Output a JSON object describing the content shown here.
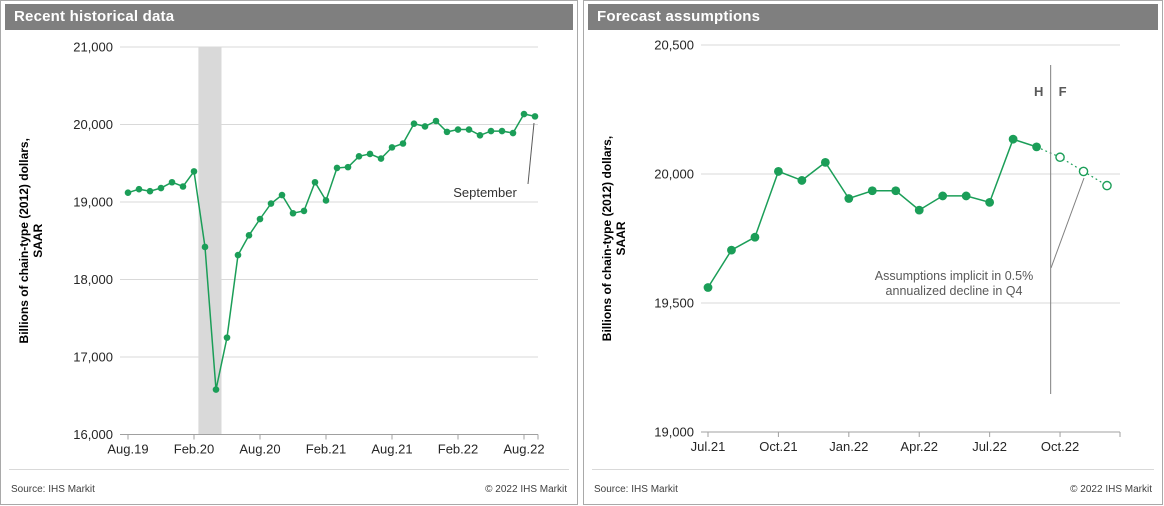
{
  "panels": [
    {
      "title": "Recent historical data",
      "source": "Source: IHS Markit",
      "copyright": "© 2022  IHS Markit"
    },
    {
      "title": "Forecast assumptions",
      "source": "Source: IHS Markit",
      "copyright": "© 2022  IHS Markit"
    }
  ],
  "colors": {
    "accent_green": "#1b9e58",
    "header_bg": "#7f7f7f",
    "grid": "#d9d9d9",
    "axis": "#a0a0a0",
    "recession_band": "#d9d9d9",
    "tick_text": "#262626",
    "annotation_gray": "#595959",
    "annotation_dark": "#3c3c3c"
  },
  "chart_data": [
    {
      "type": "line",
      "title": "Recent historical data",
      "ylabel": [
        "Billions of chain-type (2012)  dollars,",
        "SAAR"
      ],
      "ylim": [
        16000,
        21000
      ],
      "yticks": [
        16000,
        17000,
        18000,
        19000,
        20000,
        21000
      ],
      "grid": true,
      "x": [
        "Aug.19",
        "Sep.19",
        "Oct.19",
        "Nov.19",
        "Dec.19",
        "Jan.20",
        "Feb.20",
        "Mar.20",
        "Apr.20",
        "May.20",
        "Jun.20",
        "Jul.20",
        "Aug.20",
        "Sep.20",
        "Oct.20",
        "Nov.20",
        "Dec.20",
        "Jan.21",
        "Feb.21",
        "Mar.21",
        "Apr.21",
        "May.21",
        "Jun.21",
        "Jul.21",
        "Aug.21",
        "Sep.21",
        "Oct.21",
        "Nov.21",
        "Dec.21",
        "Jan.22",
        "Feb.22",
        "Mar.22",
        "Apr.22",
        "May.22",
        "Jun.22",
        "Jul.22",
        "Aug.22",
        "Sep.22"
      ],
      "xtick_labels": [
        "Aug.19",
        "Feb.20",
        "Aug.20",
        "Feb.21",
        "Aug.21",
        "Feb.22",
        "Aug.22"
      ],
      "xtick_indices": [
        0,
        6,
        12,
        18,
        24,
        30,
        36
      ],
      "values": [
        19120,
        19165,
        19140,
        19180,
        19255,
        19200,
        19395,
        18420,
        16580,
        17250,
        18315,
        18570,
        18780,
        18980,
        19090,
        18855,
        18885,
        19255,
        19020,
        19440,
        19450,
        19590,
        19620,
        19560,
        19705,
        19755,
        20010,
        19975,
        20045,
        19905,
        19935,
        19935,
        19860,
        19915,
        19915,
        19890,
        20135,
        20105
      ],
      "recession_band_index_range": [
        6.4,
        8.5
      ],
      "annotation": {
        "text": "September"
      }
    },
    {
      "type": "line",
      "title": "Forecast assumptions",
      "ylabel": [
        "Billions of chain-type (2012)  dollars,",
        "SAAR"
      ],
      "ylim": [
        19000,
        20500
      ],
      "yticks": [
        19000,
        19500,
        20000,
        20500
      ],
      "grid": true,
      "x": [
        "Jul.21",
        "Aug.21",
        "Sep.21",
        "Oct.21",
        "Nov.21",
        "Dec.21",
        "Jan.22",
        "Feb.22",
        "Mar.22",
        "Apr.22",
        "May.22",
        "Jun.22",
        "Jul.22",
        "Aug.22",
        "Sep.22",
        "Oct.22",
        "Nov.22",
        "Dec.22"
      ],
      "xtick_labels": [
        "Jul.21",
        "Oct.21",
        "Jan.22",
        "Apr.22",
        "Jul.22",
        "Oct.22"
      ],
      "xtick_indices": [
        0,
        3,
        6,
        9,
        12,
        15
      ],
      "series": [
        {
          "name": "History",
          "style": "solid-filled-dots",
          "values": [
            19560,
            19705,
            19755,
            20010,
            19975,
            20045,
            19905,
            19935,
            19935,
            19860,
            19915,
            19915,
            19890,
            20135,
            20105
          ]
        },
        {
          "name": "Forecast",
          "style": "dotted-open-dots",
          "values": [
            20065,
            20010,
            19955
          ]
        }
      ],
      "hf_divider": {
        "labels": [
          "H",
          "F"
        ],
        "between_index": 14.6
      },
      "annotation": {
        "text_line1": "Assumptions implicit in 0.5%",
        "text_line2": "annualized decline in Q4"
      }
    }
  ]
}
